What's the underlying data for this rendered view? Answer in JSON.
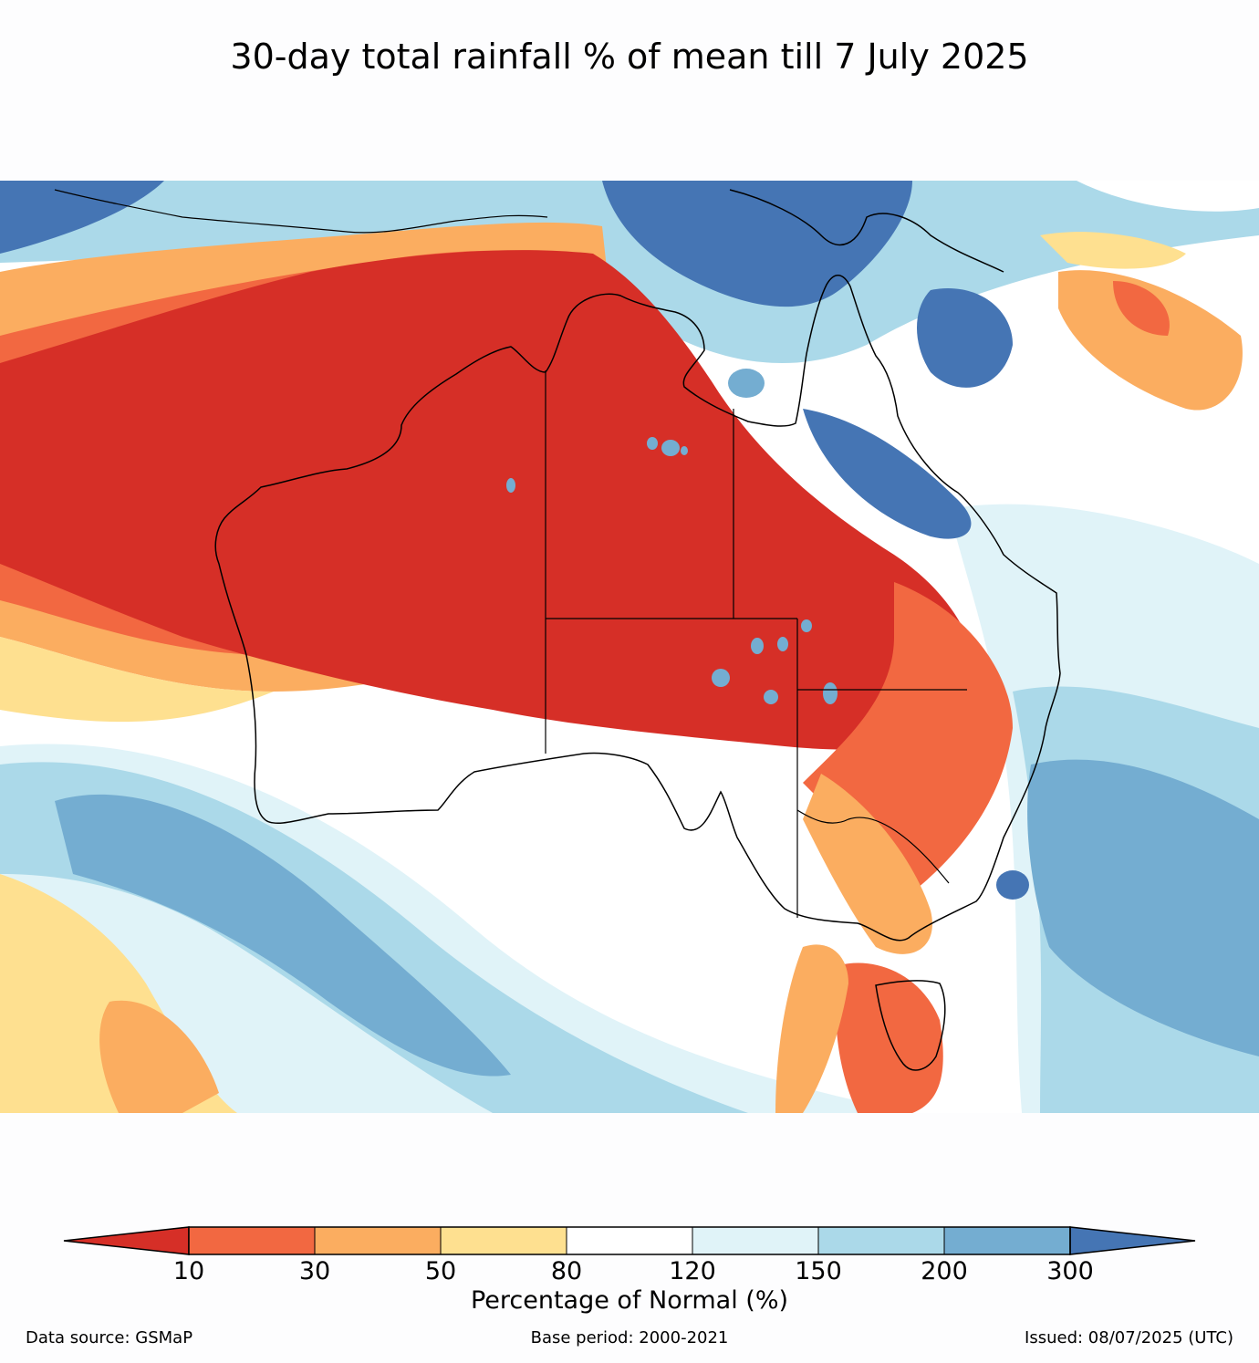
{
  "title": "30-day total rainfall % of mean till 7 July 2025",
  "colors": {
    "lt10": "#d62f27",
    "c10_30": "#f26841",
    "c30_50": "#fbad60",
    "c50_80": "#fee090",
    "c80_120": "#ffffff",
    "c120_150": "#e0f3f8",
    "c150_200": "#abd9e9",
    "c200_300": "#74add1",
    "gt300": "#4575b4"
  },
  "colorbar": {
    "label": "Percentage of Normal (%)",
    "ticks": [
      "10",
      "30",
      "50",
      "80",
      "120",
      "150",
      "200",
      "300"
    ]
  },
  "footer": {
    "source": "Data source: GSMaP",
    "base": "Base period: 2000-2021",
    "issued": "Issued: 08/07/2025 (UTC)"
  }
}
